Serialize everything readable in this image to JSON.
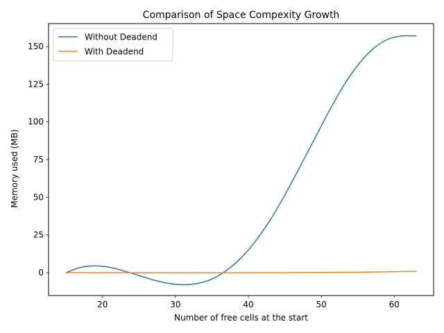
{
  "chart_data": {
    "type": "line",
    "title": "Comparison of Space Compexity Growth",
    "xlabel": "Number of free cells at the start",
    "ylabel": "Memory used (MB)",
    "xlim": [
      12.6,
      65.4
    ],
    "ylim": [
      -15.2,
      165.2
    ],
    "xticks": [
      20,
      30,
      40,
      50,
      60
    ],
    "yticks": [
      0,
      25,
      50,
      75,
      100,
      125,
      150
    ],
    "grid": false,
    "legend_position": "upper-left",
    "series": [
      {
        "name": "Without Deadend",
        "color": "#1f77b4",
        "x": [
          15,
          17,
          19,
          21,
          23,
          25,
          27,
          29,
          31,
          33,
          35,
          37,
          39,
          41,
          43,
          45,
          47,
          49,
          51,
          53,
          55,
          57,
          59,
          61,
          63
        ],
        "y": [
          0,
          3.5,
          4.5,
          3.5,
          1.0,
          -1.9,
          -4.9,
          -7.1,
          -8.0,
          -7.2,
          -4.3,
          1.5,
          9.8,
          21.0,
          35.0,
          51.5,
          69.5,
          88.0,
          106.5,
          123.5,
          137.5,
          148.0,
          154.5,
          157.0,
          157.0
        ]
      },
      {
        "name": "With Deadend",
        "color": "#ff7f0e",
        "x": [
          15,
          20,
          25,
          30,
          35,
          40,
          45,
          50,
          55,
          60,
          63
        ],
        "y": [
          0,
          0,
          -0.1,
          -0.1,
          -0.1,
          0,
          0,
          0.1,
          0.3,
          0.6,
          0.9
        ]
      }
    ]
  }
}
